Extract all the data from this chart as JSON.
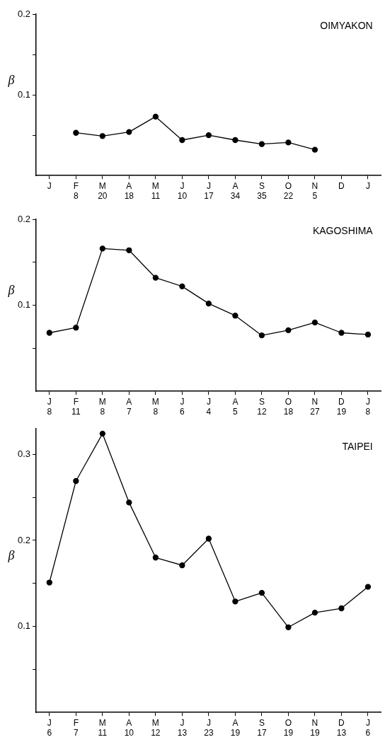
{
  "chart_data": [
    {
      "type": "line",
      "title": "OIMYAKON",
      "ylabel": "β",
      "categories": [
        "J",
        "F\n8",
        "M\n20",
        "A\n18",
        "M\n11",
        "J\n10",
        "J\n17",
        "A\n34",
        "S\n35",
        "O\n22",
        "N\n5",
        "D",
        "J"
      ],
      "series": [
        {
          "color": "#000000",
          "values": [
            null,
            0.053,
            0.049,
            0.054,
            0.073,
            0.044,
            0.05,
            0.044,
            0.039,
            0.041,
            0.032,
            null,
            null
          ]
        }
      ],
      "ylim": [
        0,
        0.2
      ],
      "yticks": [
        {
          "value": 0.05,
          "label": null
        },
        0.1,
        {
          "value": 0.15,
          "label": null
        },
        0.2
      ],
      "marker": "circle",
      "line_style": "solid",
      "legend": false,
      "grid": false
    },
    {
      "type": "line",
      "title": "KAGOSHIMA",
      "ylabel": "β",
      "categories": [
        "J\n8",
        "F\n11",
        "M\n8",
        "A\n7",
        "M\n8",
        "J\n6",
        "J\n4",
        "A\n5",
        "S\n12",
        "O\n18",
        "N\n27",
        "D\n19",
        "J\n8"
      ],
      "series": [
        {
          "color": "#000000",
          "values": [
            0.068,
            0.074,
            0.166,
            0.164,
            0.132,
            0.122,
            0.102,
            0.088,
            0.065,
            0.071,
            0.08,
            0.068,
            0.066
          ]
        }
      ],
      "ylim": [
        0,
        0.2
      ],
      "yticks": [
        {
          "value": 0.05,
          "label": null
        },
        0.1,
        {
          "value": 0.15,
          "label": null
        },
        0.2
      ],
      "marker": "circle",
      "line_style": "solid",
      "legend": false,
      "grid": false
    },
    {
      "type": "line",
      "title": "TAIPEI",
      "ylabel": "β",
      "categories": [
        "J\n6",
        "F\n7",
        "M\n11",
        "A\n10",
        "M\n12",
        "J\n13",
        "J\n23",
        "A\n19",
        "S\n17",
        "O\n19",
        "N\n19",
        "D\n13",
        "J\n6"
      ],
      "series": [
        {
          "color": "#000000",
          "values": [
            0.151,
            0.269,
            0.324,
            0.244,
            0.18,
            0.171,
            0.202,
            0.129,
            0.139,
            0.099,
            0.116,
            0.121,
            0.146
          ]
        }
      ],
      "ylim": [
        0,
        0.33
      ],
      "yticks": [
        {
          "value": 0.05,
          "label": null
        },
        0.1,
        {
          "value": 0.15,
          "label": null
        },
        0.2,
        {
          "value": 0.25,
          "label": null
        },
        0.3
      ],
      "marker": "circle",
      "line_style": "solid",
      "legend": false,
      "grid": false
    }
  ]
}
